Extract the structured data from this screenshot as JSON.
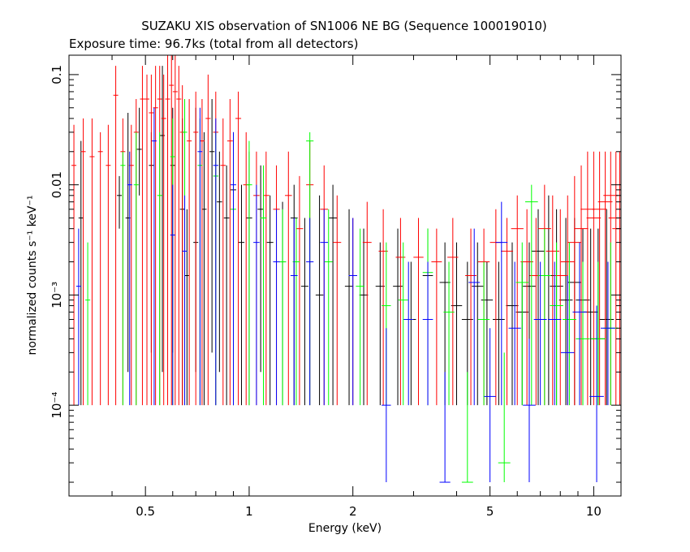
{
  "chart_data": {
    "type": "scatter",
    "title": "SUZAKU XIS observation of SN1006 NE BG (Sequence 100019010)",
    "subtitle": "Exposure time: 96.7ks (total from all detectors)",
    "xlabel": "Energy (keV)",
    "ylabel": "normalized counts s⁻¹ keV⁻¹",
    "xscale": "log",
    "yscale": "log",
    "xlim": [
      0.3,
      12
    ],
    "ylim": [
      1.5e-05,
      0.15
    ],
    "grid": false,
    "x_ticks": [
      {
        "value": 0.5,
        "label": "0.5"
      },
      {
        "value": 1,
        "label": "1"
      },
      {
        "value": 2,
        "label": "2"
      },
      {
        "value": 5,
        "label": "5"
      },
      {
        "value": 10,
        "label": "10"
      }
    ],
    "y_ticks": [
      {
        "value": 0.1,
        "label": "0.1"
      },
      {
        "value": 0.01,
        "label": "0.01"
      },
      {
        "value": 0.001,
        "label": "10⁻³"
      },
      {
        "value": 0.0001,
        "label": "10⁻⁴"
      }
    ],
    "series": [
      {
        "color": "#000000",
        "points": [
          [
            0.325,
            0.005,
            0.025,
            0.0001
          ],
          [
            0.42,
            0.008,
            0.012,
            0.004
          ],
          [
            0.445,
            0.005,
            0.045,
            0.0002
          ],
          [
            0.48,
            0.021,
            0.05,
            0.008
          ],
          [
            0.52,
            0.015,
            0.03,
            0.0003
          ],
          [
            0.56,
            0.028,
            0.12,
            0.0002
          ],
          [
            0.6,
            0.015,
            0.05,
            0.0003
          ],
          [
            0.64,
            0.006,
            0.04,
            0.0001
          ],
          [
            0.66,
            0.0015,
            0.006,
            0.0001
          ],
          [
            0.7,
            0.003,
            0.05,
            0.0002
          ],
          [
            0.74,
            0.006,
            0.03,
            0.0001
          ],
          [
            0.78,
            0.02,
            0.06,
            0.0003
          ],
          [
            0.82,
            0.007,
            0.02,
            0.0002
          ],
          [
            0.86,
            0.005,
            0.015,
            0.0001
          ],
          [
            0.9,
            0.009,
            0.03,
            0.0001
          ],
          [
            0.95,
            0.003,
            0.01,
            0.0001
          ],
          [
            1.0,
            0.005,
            0.02,
            0.0001
          ],
          [
            1.08,
            0.006,
            0.015,
            0.0002
          ],
          [
            1.15,
            0.003,
            0.008,
            0.0001
          ],
          [
            1.25,
            0.002,
            0.007,
            0.0001
          ],
          [
            1.35,
            0.005,
            0.01,
            0.0001
          ],
          [
            1.45,
            0.0012,
            0.005,
            0.0001
          ],
          [
            1.6,
            0.001,
            0.008,
            0.0001
          ],
          [
            1.75,
            0.005,
            0.01,
            0.0001
          ],
          [
            1.95,
            0.0012,
            0.006,
            0.0001
          ],
          [
            2.15,
            0.001,
            0.004,
            0.0001
          ],
          [
            2.4,
            0.0012,
            0.003,
            0.0001
          ],
          [
            2.7,
            0.0012,
            0.004,
            0.0001
          ],
          [
            2.95,
            0.0006,
            0.002,
            0.0001
          ],
          [
            3.3,
            0.0015,
            0.004,
            0.0001
          ],
          [
            3.7,
            0.0013,
            0.003,
            0.0001
          ],
          [
            4.0,
            0.0008,
            0.003,
            0.0001
          ],
          [
            4.3,
            0.0006,
            0.002,
            0.0001
          ],
          [
            4.6,
            0.0012,
            0.003,
            0.0001
          ],
          [
            4.9,
            0.0009,
            0.002,
            0.0001
          ],
          [
            5.3,
            0.0006,
            0.002,
            0.0001
          ],
          [
            5.8,
            0.0008,
            0.003,
            0.0001
          ],
          [
            6.2,
            0.0007,
            0.002,
            0.0001
          ],
          [
            6.5,
            0.0012,
            0.003,
            0.0001
          ],
          [
            6.9,
            0.0025,
            0.006,
            0.0001
          ],
          [
            7.4,
            0.0015,
            0.008,
            0.0001
          ],
          [
            7.8,
            0.0012,
            0.006,
            0.0001
          ],
          [
            8.3,
            0.0009,
            0.005,
            0.0001
          ],
          [
            8.8,
            0.0013,
            0.005,
            0.0001
          ],
          [
            9.3,
            0.0009,
            0.004,
            0.0001
          ],
          [
            9.8,
            0.0007,
            0.004,
            0.0001
          ],
          [
            10.3,
            0.0004,
            0.004,
            0.0001
          ],
          [
            10.9,
            0.0006,
            0.006,
            0.0001
          ]
        ]
      },
      {
        "color": "#ff0000",
        "points": [
          [
            0.31,
            0.015,
            0.035,
            0.0001
          ],
          [
            0.33,
            0.02,
            0.04,
            0.0001
          ],
          [
            0.35,
            0.018,
            0.04,
            0.0001
          ],
          [
            0.37,
            0.02,
            0.03,
            0.0001
          ],
          [
            0.39,
            0.015,
            0.035,
            0.0001
          ],
          [
            0.41,
            0.065,
            0.12,
            0.0001
          ],
          [
            0.43,
            0.02,
            0.04,
            0.0001
          ],
          [
            0.455,
            0.015,
            0.035,
            0.0001
          ],
          [
            0.47,
            0.03,
            0.06,
            0.0001
          ],
          [
            0.49,
            0.06,
            0.12,
            0.0001
          ],
          [
            0.505,
            0.06,
            0.1,
            0.0001
          ],
          [
            0.52,
            0.045,
            0.1,
            0.0001
          ],
          [
            0.535,
            0.05,
            0.12,
            0.0001
          ],
          [
            0.55,
            0.06,
            0.12,
            0.0001
          ],
          [
            0.565,
            0.04,
            0.1,
            0.0001
          ],
          [
            0.58,
            0.06,
            0.15,
            0.0001
          ],
          [
            0.595,
            0.08,
            0.15,
            0.0001
          ],
          [
            0.61,
            0.07,
            0.15,
            0.0001
          ],
          [
            0.625,
            0.06,
            0.12,
            0.0001
          ],
          [
            0.64,
            0.03,
            0.08,
            0.0001
          ],
          [
            0.67,
            0.025,
            0.06,
            0.0001
          ],
          [
            0.7,
            0.03,
            0.07,
            0.0001
          ],
          [
            0.73,
            0.025,
            0.06,
            0.0001
          ],
          [
            0.76,
            0.04,
            0.1,
            0.0001
          ],
          [
            0.8,
            0.03,
            0.07,
            0.0001
          ],
          [
            0.84,
            0.015,
            0.04,
            0.0001
          ],
          [
            0.88,
            0.025,
            0.06,
            0.0001
          ],
          [
            0.93,
            0.04,
            0.07,
            0.0001
          ],
          [
            0.98,
            0.01,
            0.03,
            0.0001
          ],
          [
            1.05,
            0.008,
            0.02,
            0.0001
          ],
          [
            1.12,
            0.008,
            0.02,
            0.0001
          ],
          [
            1.2,
            0.006,
            0.015,
            0.0001
          ],
          [
            1.3,
            0.008,
            0.02,
            0.0001
          ],
          [
            1.4,
            0.004,
            0.012,
            0.0001
          ],
          [
            1.5,
            0.01,
            0.025,
            0.0001
          ],
          [
            1.65,
            0.006,
            0.015,
            0.0001
          ],
          [
            1.8,
            0.003,
            0.008,
            0.0001
          ],
          [
            2.0,
            0.0015,
            0.005,
            0.0001
          ],
          [
            2.2,
            0.003,
            0.007,
            0.0001
          ],
          [
            2.45,
            0.0025,
            0.006,
            0.0001
          ],
          [
            2.75,
            0.0022,
            0.005,
            0.0001
          ],
          [
            3.1,
            0.0022,
            0.005,
            0.0001
          ],
          [
            3.5,
            0.002,
            0.004,
            0.0001
          ],
          [
            3.9,
            0.0022,
            0.005,
            0.0001
          ],
          [
            4.4,
            0.0015,
            0.004,
            0.0001
          ],
          [
            4.8,
            0.002,
            0.004,
            0.0001
          ],
          [
            5.2,
            0.003,
            0.006,
            0.0001
          ],
          [
            5.6,
            0.0025,
            0.005,
            0.0001
          ],
          [
            6.0,
            0.004,
            0.008,
            0.0001
          ],
          [
            6.4,
            0.002,
            0.006,
            0.0001
          ],
          [
            6.8,
            0.0015,
            0.005,
            0.0001
          ],
          [
            7.2,
            0.004,
            0.01,
            0.0001
          ],
          [
            7.6,
            0.0025,
            0.008,
            0.0001
          ],
          [
            8.0,
            0.0015,
            0.006,
            0.0001
          ],
          [
            8.4,
            0.002,
            0.008,
            0.0001
          ],
          [
            8.8,
            0.003,
            0.012,
            0.0001
          ],
          [
            9.2,
            0.004,
            0.015,
            0.0001
          ],
          [
            9.6,
            0.006,
            0.02,
            0.0001
          ],
          [
            10.0,
            0.005,
            0.02,
            0.0001
          ],
          [
            10.4,
            0.006,
            0.02,
            0.0001
          ],
          [
            10.8,
            0.007,
            0.02,
            0.0001
          ],
          [
            11.2,
            0.008,
            0.02,
            0.0001
          ],
          [
            11.6,
            0.005,
            0.02,
            0.0001
          ],
          [
            11.9,
            0.004,
            0.02,
            0.0001
          ]
        ]
      },
      {
        "color": "#00ff00",
        "points": [
          [
            0.34,
            0.0009,
            0.003,
            0.0001
          ],
          [
            0.43,
            0.015,
            0.02,
            0.0001
          ],
          [
            0.47,
            0.01,
            0.03,
            0.0001
          ],
          [
            0.55,
            0.008,
            0.03,
            0.0001
          ],
          [
            0.6,
            0.018,
            0.04,
            0.0001
          ],
          [
            0.65,
            0.03,
            0.06,
            0.0001
          ],
          [
            0.72,
            0.015,
            0.04,
            0.0001
          ],
          [
            0.8,
            0.012,
            0.03,
            0.0001
          ],
          [
            0.9,
            0.006,
            0.02,
            0.0001
          ],
          [
            1.0,
            0.01,
            0.025,
            0.0001
          ],
          [
            1.1,
            0.005,
            0.015,
            0.0001
          ],
          [
            1.25,
            0.002,
            0.006,
            0.0001
          ],
          [
            1.37,
            0.002,
            0.005,
            0.0001
          ],
          [
            1.5,
            0.025,
            0.03,
            0.0001
          ],
          [
            1.7,
            0.002,
            0.006,
            0.0001
          ],
          [
            2.1,
            0.0012,
            0.004,
            0.0001
          ],
          [
            2.5,
            0.0008,
            0.003,
            0.0001
          ],
          [
            2.8,
            0.0009,
            0.003,
            0.0001
          ],
          [
            3.3,
            0.0016,
            0.004,
            0.0001
          ],
          [
            3.8,
            0.0007,
            0.002,
            0.0001
          ],
          [
            4.3,
            2e-05,
            0.0002,
            2e-05
          ],
          [
            4.8,
            0.0006,
            0.002,
            0.0001
          ],
          [
            5.5,
            3e-05,
            0.0003,
            2e-05
          ],
          [
            6.2,
            0.0013,
            0.003,
            0.0001
          ],
          [
            6.6,
            0.007,
            0.01,
            0.0001
          ],
          [
            7.2,
            0.0015,
            0.004,
            0.0001
          ],
          [
            7.8,
            0.0008,
            0.003,
            0.0001
          ],
          [
            8.5,
            0.0006,
            0.003,
            0.0001
          ],
          [
            9.3,
            0.0004,
            0.002,
            0.0001
          ],
          [
            10.3,
            0.0004,
            0.002,
            0.0001
          ],
          [
            11.2,
            0.0005,
            0.003,
            0.0001
          ]
        ]
      },
      {
        "color": "#0000ff",
        "points": [
          [
            0.32,
            0.0012,
            0.004,
            0.0001
          ],
          [
            0.45,
            0.01,
            0.02,
            0.0001
          ],
          [
            0.53,
            0.025,
            0.05,
            0.0001
          ],
          [
            0.6,
            0.0035,
            0.01,
            0.0001
          ],
          [
            0.65,
            0.0025,
            0.008,
            0.0001
          ],
          [
            0.72,
            0.02,
            0.05,
            0.0001
          ],
          [
            0.8,
            0.015,
            0.04,
            0.0001
          ],
          [
            0.9,
            0.01,
            0.03,
            0.0001
          ],
          [
            1.05,
            0.003,
            0.01,
            0.0001
          ],
          [
            1.2,
            0.002,
            0.006,
            0.0001
          ],
          [
            1.35,
            0.0015,
            0.005,
            0.0001
          ],
          [
            1.5,
            0.002,
            0.005,
            0.0001
          ],
          [
            1.65,
            0.003,
            0.006,
            0.0001
          ],
          [
            2.0,
            0.0015,
            0.005,
            0.0001
          ],
          [
            2.5,
            0.0001,
            0.0005,
            2e-05
          ],
          [
            2.9,
            0.0006,
            0.002,
            0.0001
          ],
          [
            3.3,
            0.0006,
            0.002,
            0.0001
          ],
          [
            3.7,
            2e-05,
            0.0002,
            2e-05
          ],
          [
            4.5,
            0.0013,
            0.004,
            0.0001
          ],
          [
            5.0,
            0.00012,
            0.0005,
            2e-05
          ],
          [
            5.4,
            0.003,
            0.007,
            0.0001
          ],
          [
            5.9,
            0.0005,
            0.002,
            0.0001
          ],
          [
            6.5,
            0.0001,
            0.0004,
            2e-05
          ],
          [
            7.0,
            0.0006,
            0.002,
            0.0001
          ],
          [
            7.7,
            0.0006,
            0.002,
            0.0001
          ],
          [
            8.4,
            0.0003,
            0.0015,
            0.0001
          ],
          [
            9.1,
            0.0007,
            0.003,
            0.0001
          ],
          [
            10.2,
            0.00012,
            0.0008,
            2e-05
          ],
          [
            11.0,
            0.0005,
            0.002,
            0.0001
          ]
        ]
      }
    ]
  }
}
